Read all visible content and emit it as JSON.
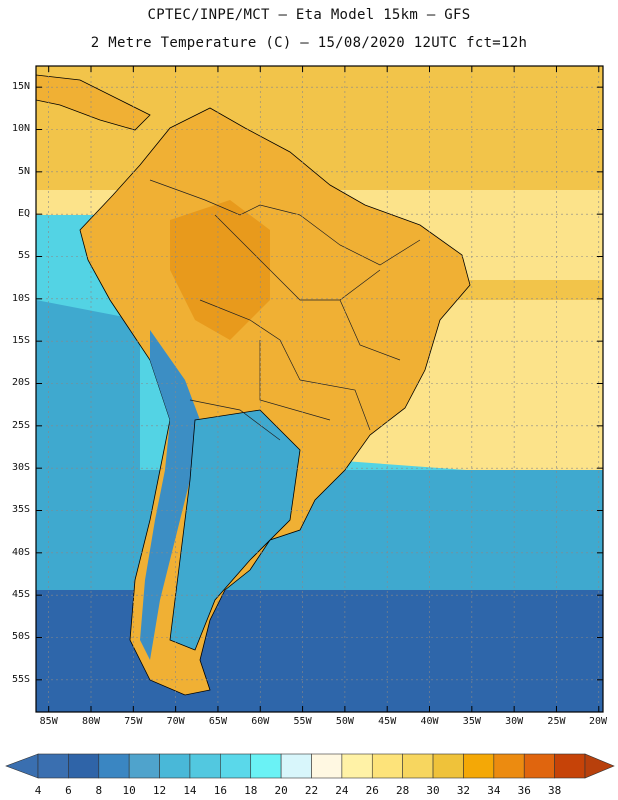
{
  "header": {
    "line1": "CPTEC/INPE/MCT –  Eta Model 15km – GFS",
    "line2": "2 Metre Temperature (C) – 15/08/2020 12UTC fct=12h"
  },
  "map": {
    "lat_labels": [
      "15N",
      "10N",
      "5N",
      "EQ",
      "5S",
      "10S",
      "15S",
      "20S",
      "25S",
      "30S",
      "35S",
      "40S",
      "45S",
      "50S",
      "55S"
    ],
    "lon_labels": [
      "85W",
      "80W",
      "75W",
      "70W",
      "65W",
      "60W",
      "55W",
      "50W",
      "45W",
      "40W",
      "35W",
      "30W",
      "25W",
      "20W"
    ]
  },
  "colorbar": {
    "labels": [
      "4",
      "6",
      "8",
      "10",
      "12",
      "14",
      "16",
      "18",
      "20",
      "22",
      "24",
      "26",
      "28",
      "30",
      "32",
      "34",
      "36",
      "38"
    ],
    "colors": [
      "#3a6fb0",
      "#2f64a8",
      "#3a86c2",
      "#4fa3cc",
      "#49b8d8",
      "#52c8e0",
      "#5ad8ea",
      "#6af2f5",
      "#d8f6fb",
      "#fff8e2",
      "#fff2a6",
      "#fde37a",
      "#f7d65f",
      "#efc23a",
      "#f4a806",
      "#ec8b10",
      "#e0650e",
      "#c64308"
    ],
    "low_arrow_color": "#3a6fb0",
    "high_arrow_color": "#b8400c"
  },
  "palette": {
    "tropical_ocean": "#f2c44a",
    "subtropical_ocean": "#fce38a",
    "cool_ocean": "#53d3e4",
    "cold_ocean": "#3fa9cf",
    "polar_ocean": "#2e66aa",
    "warm_land": "#f0b034",
    "hot_land": "#e89a1c",
    "andes": "#3c8ec4"
  }
}
